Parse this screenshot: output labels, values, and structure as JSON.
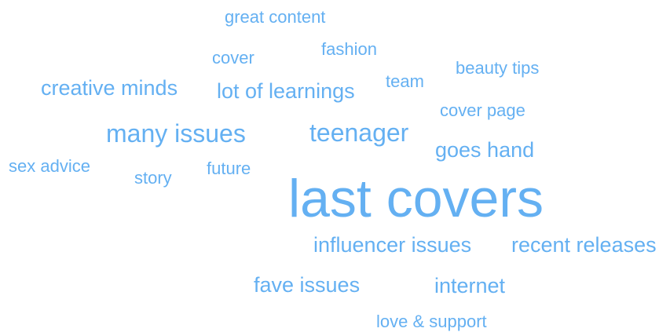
{
  "word_cloud": {
    "color": "#64b0f2",
    "words": [
      "great content",
      "fashion",
      "cover",
      "beauty tips",
      "team",
      "creative minds",
      "lot of learnings",
      "cover page",
      "many issues",
      "teenager",
      "goes hand",
      "sex advice",
      "future",
      "story",
      "last covers",
      "influencer issues",
      "recent releases",
      "fave issues",
      "internet",
      "love & support"
    ]
  }
}
